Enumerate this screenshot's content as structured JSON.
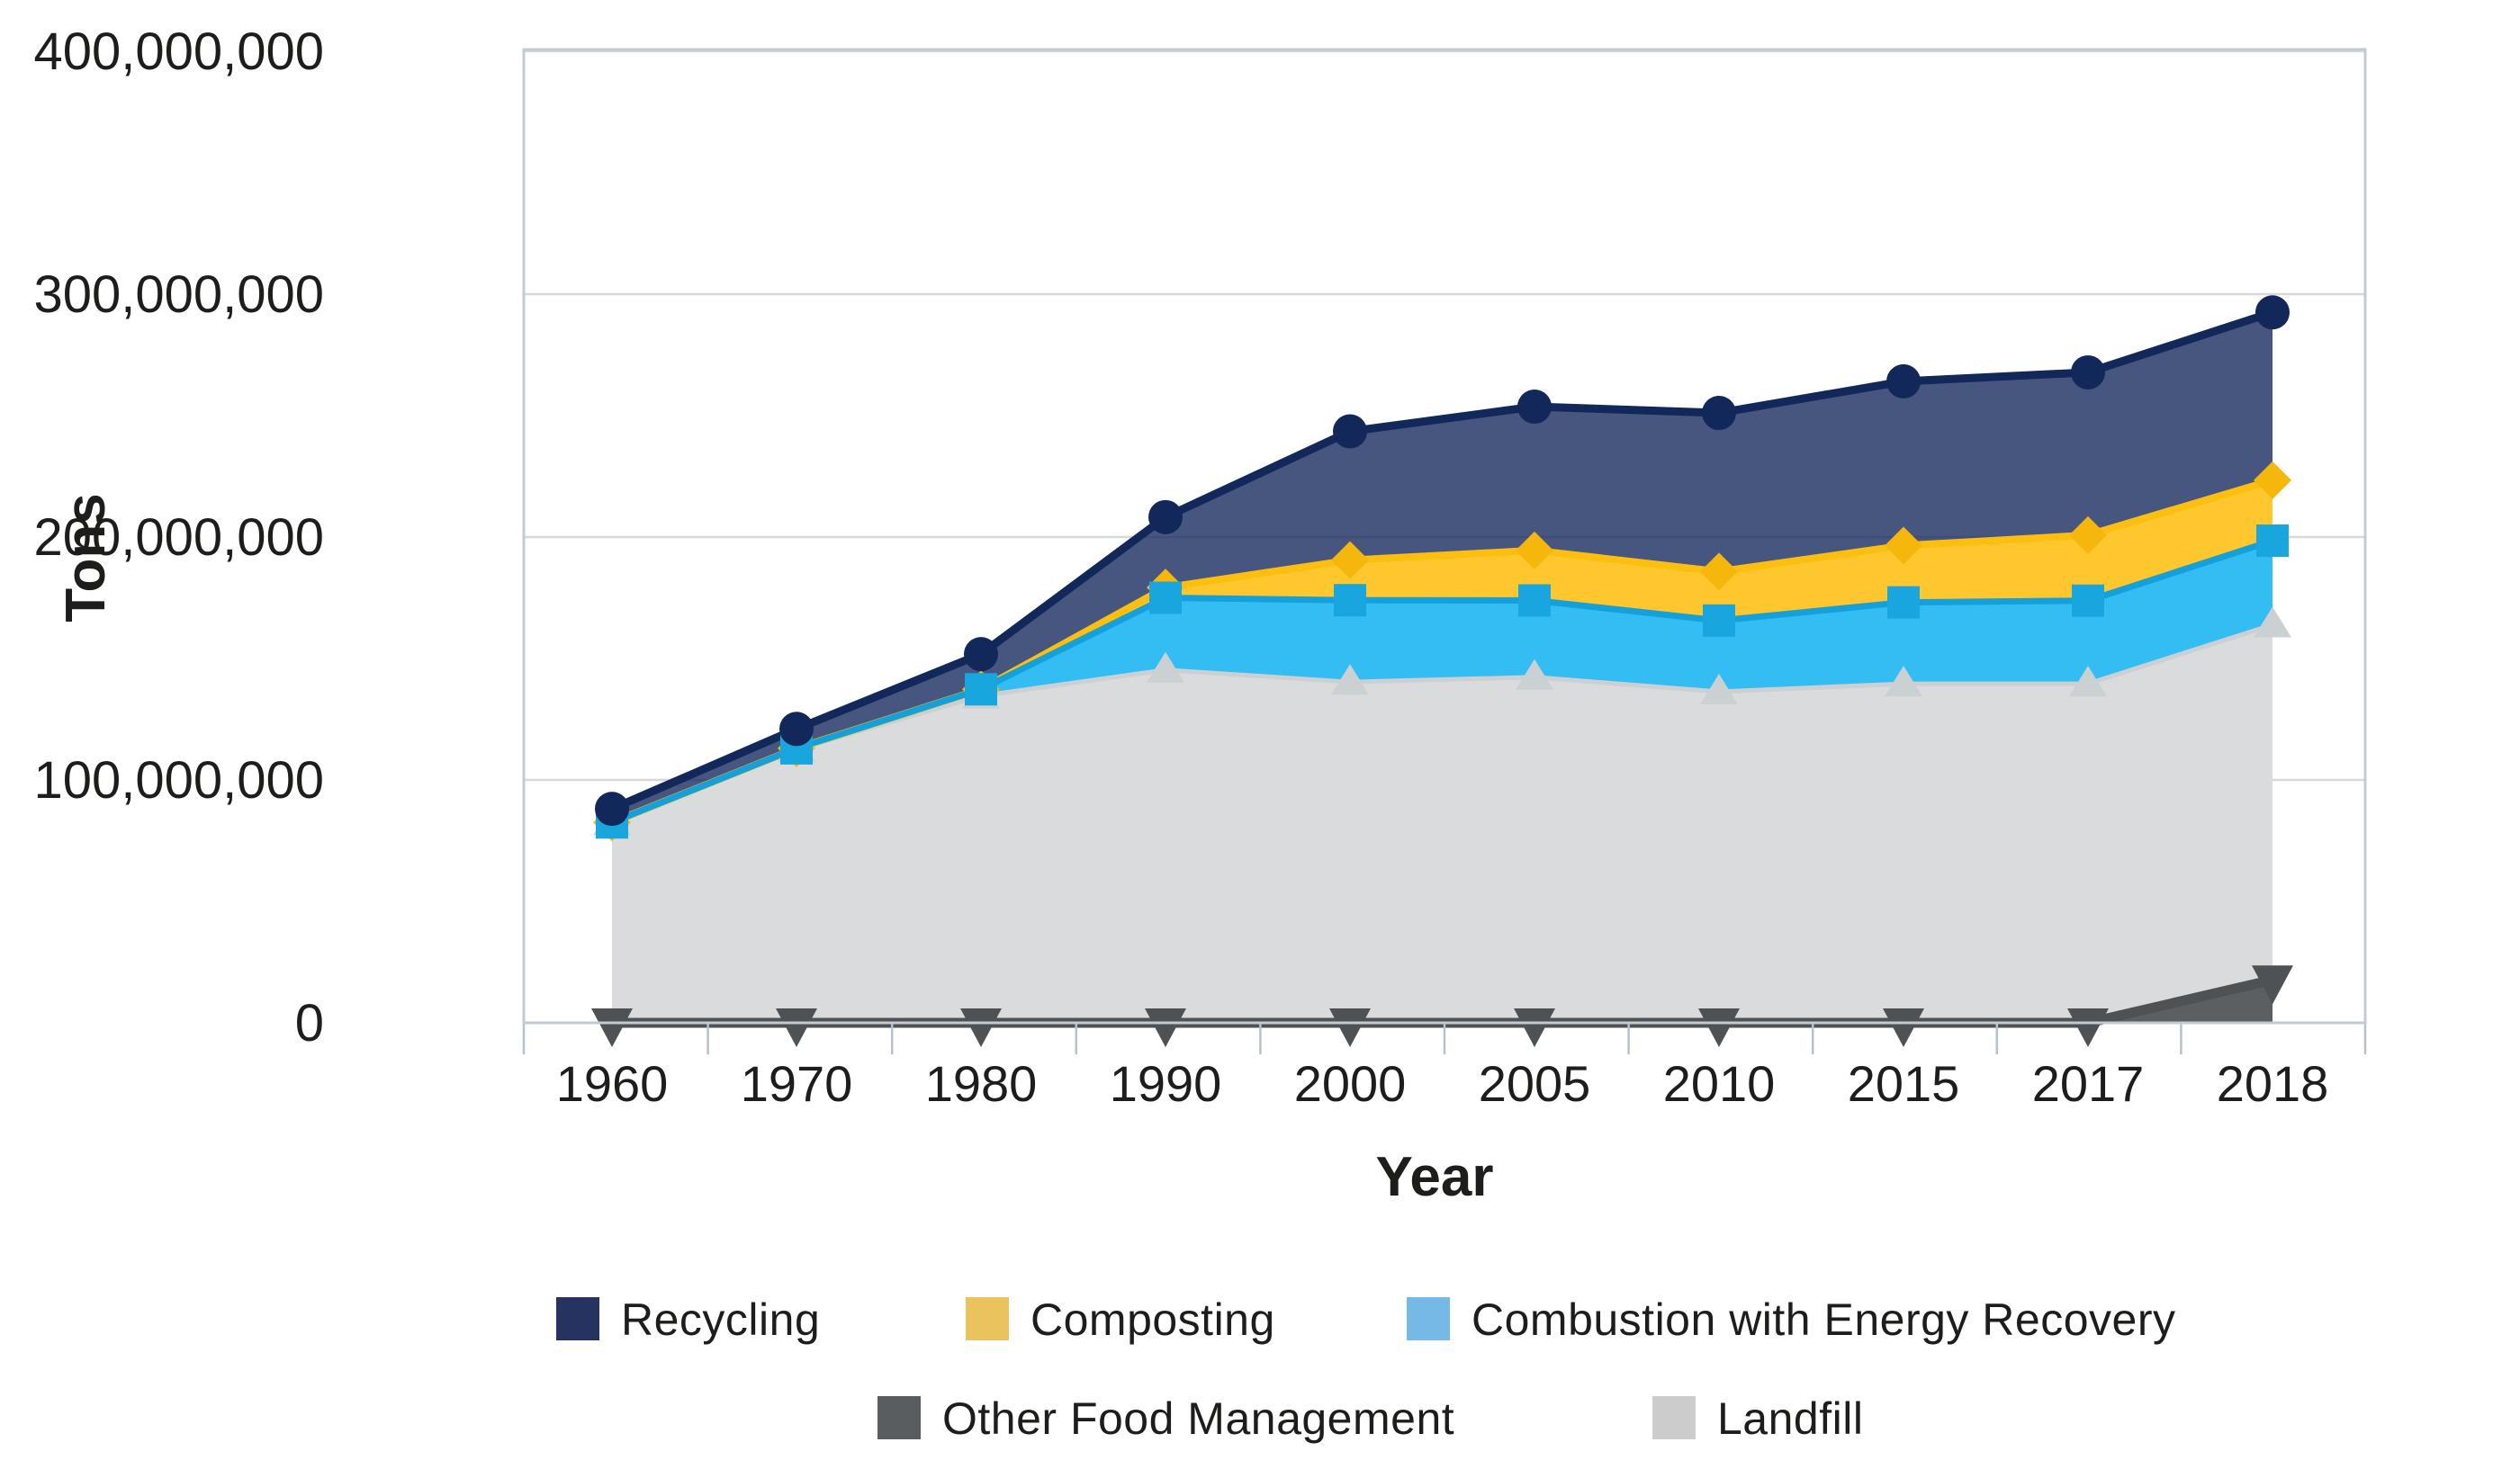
{
  "figure": {
    "y_axis_title": "Tons",
    "x_axis_title": "Year",
    "y_tick_labels": [
      "400,000,000",
      "300,000,000",
      "200,000,000",
      "100,000,000",
      "0"
    ],
    "x_tick_labels": [
      "1960",
      "1970",
      "1980",
      "1990",
      "2000",
      "2005",
      "2010",
      "2015",
      "2017",
      "2018"
    ]
  },
  "legend": {
    "items": [
      {
        "label": "Recycling",
        "color": "#263361"
      },
      {
        "label": "Composting",
        "color": "#eac25e"
      },
      {
        "label": "Combustion with Energy Recovery",
        "color": "#76b8e6"
      },
      {
        "label": "Other Food Management",
        "color": "#595d5f"
      },
      {
        "label": "Landfill",
        "color": "#cccccc"
      }
    ]
  },
  "chart_data": {
    "type": "area",
    "stacked": true,
    "title": "",
    "xlabel": "Year",
    "ylabel": "Tons",
    "unit": "tons",
    "ylim": [
      0,
      400000000
    ],
    "y_ticks": [
      0,
      100000000,
      200000000,
      300000000,
      400000000
    ],
    "grid": "horizontal",
    "legend_position": "bottom",
    "categories": [
      "1960",
      "1970",
      "1980",
      "1990",
      "2000",
      "2005",
      "2010",
      "2015",
      "2017",
      "2018"
    ],
    "stack_note": "series listed bottom to top; plotted lines/markers are cumulative stacked totals",
    "series": [
      {
        "name": "Other Food Management",
        "values": [
          0,
          0,
          0,
          0,
          0,
          0,
          0,
          0,
          0,
          17700000
        ],
        "area_color": "#5b5f61",
        "line_color": "#4e5254",
        "marker": "triangle-down",
        "marker_color": "#4e5254",
        "legend_color": "#595d5f",
        "fill_opacity": 1
      },
      {
        "name": "Landfill",
        "values": [
          82500000,
          112600000,
          134600000,
          145300000,
          140300000,
          142300000,
          136300000,
          139600000,
          139600000,
          146200000
        ],
        "area_color": "#dadbdc",
        "line_color": "#cdd0d2",
        "marker": "triangle-up",
        "marker_color": "#cbd0d3",
        "legend_color": "#cccccc",
        "fill_opacity": 1
      },
      {
        "name": "Combustion with Energy Recovery",
        "values": [
          0,
          400000,
          2700000,
          29700000,
          33700000,
          31600000,
          29300000,
          33500000,
          34200000,
          34600000
        ],
        "area_color": "#33bdf2",
        "line_color": "#14a0da",
        "marker": "square",
        "marker_color": "#19a5de",
        "legend_color": "#76b8e6",
        "fill_opacity": 1
      },
      {
        "name": "Composting",
        "values": [
          0,
          0,
          0,
          4200000,
          16500000,
          20600000,
          20200000,
          23400000,
          27000000,
          24900000
        ],
        "area_color": "#ffc72e",
        "line_color": "#fcbf0f",
        "marker": "diamond",
        "marker_color": "#f6b70c",
        "legend_color": "#eac25e",
        "fill_opacity": 1
      },
      {
        "name": "Recycling",
        "values": [
          5600000,
          8000000,
          14500000,
          29000000,
          53000000,
          59200000,
          65300000,
          67600000,
          67000000,
          69100000
        ],
        "area_color": "#12275a",
        "line_color": "#12275a",
        "marker": "circle",
        "marker_color": "#12275a",
        "legend_color": "#263361",
        "fill_opacity": 0.78
      }
    ]
  }
}
